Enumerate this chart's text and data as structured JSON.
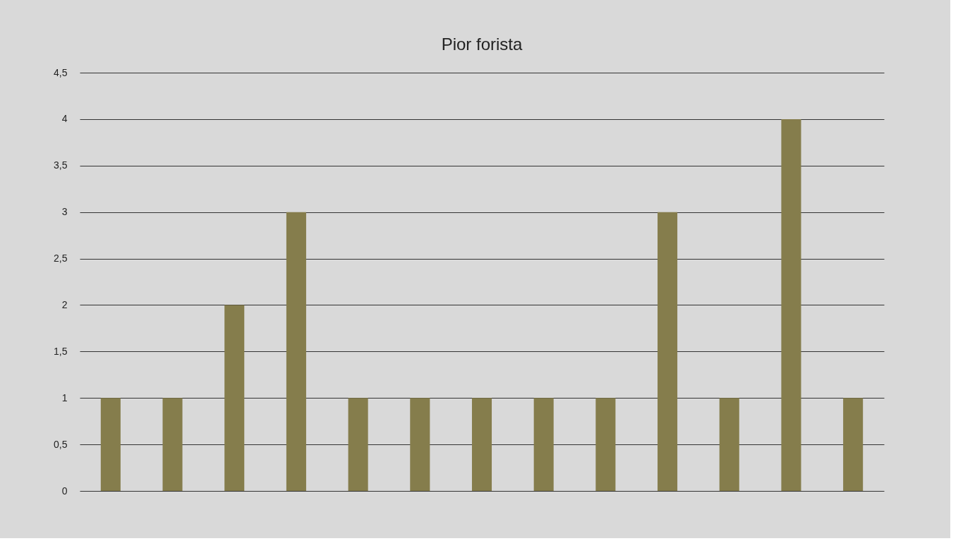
{
  "chart_data": {
    "type": "bar",
    "title": "Pior forista",
    "categories": [
      null,
      null,
      null,
      null,
      null,
      null,
      null,
      null,
      null,
      null,
      null,
      null,
      null
    ],
    "values": [
      1,
      1,
      2,
      3,
      1,
      1,
      1,
      1,
      1,
      3,
      1,
      4,
      1
    ],
    "color": "#857d4c",
    "ylim": [
      0,
      4.5
    ],
    "yticks": [
      0,
      {
        "value": 0.5,
        "label": "0,5"
      },
      1,
      {
        "value": 1.5,
        "label": "1,5"
      },
      2,
      {
        "value": 2.5,
        "label": "2,5"
      },
      3,
      {
        "value": 3.5,
        "label": "3,5"
      },
      4,
      {
        "value": 4.5,
        "label": "4,5"
      }
    ],
    "grid": "y"
  }
}
